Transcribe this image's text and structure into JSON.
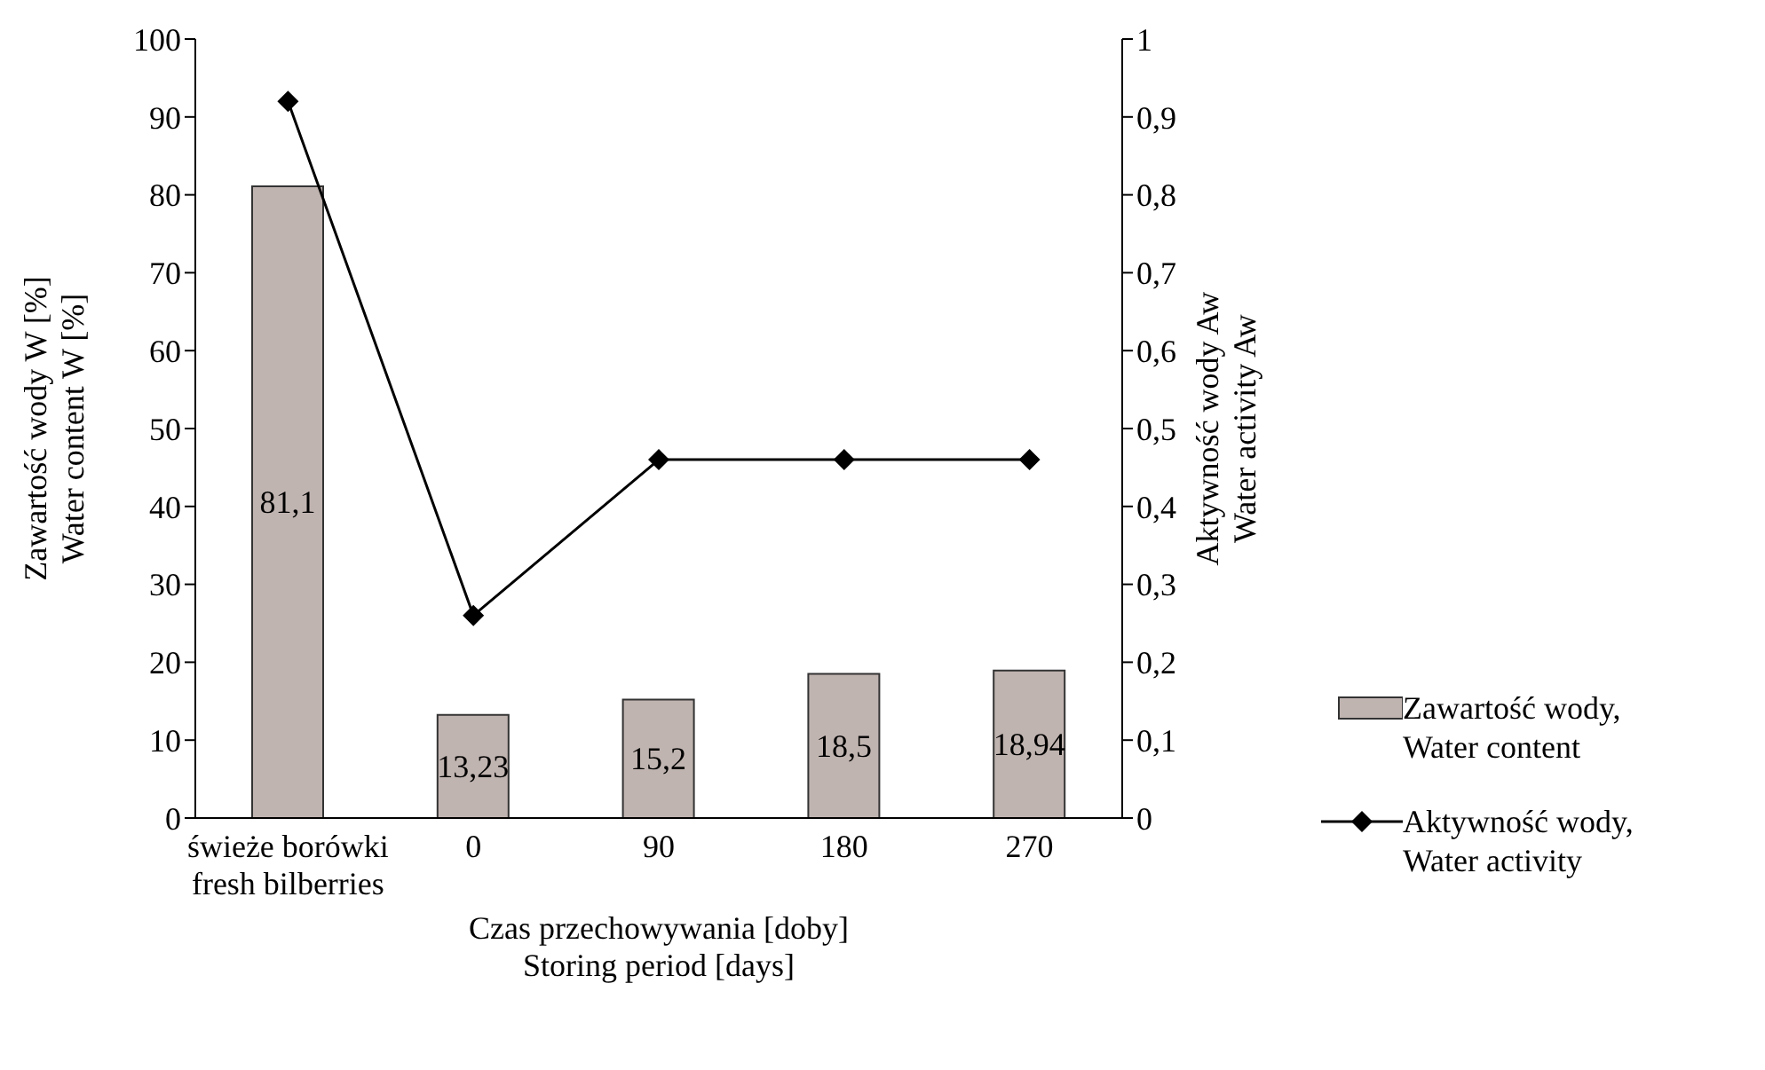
{
  "chart_data": {
    "type": "bar",
    "xlabel": "Czas przechowywania [doby]\nStoring period [days]",
    "ylabel": "Zawartość wody W [%]\nWater content W [%]",
    "y2label": "Aktywność wody Aw\nWater activity Aw",
    "categories": [
      "świeże borówki\nfresh bilberries",
      "0",
      "90",
      "180",
      "270"
    ],
    "series": [
      {
        "name": "Zawartość wody,\nWater content",
        "color": "#c0b4b0",
        "values": [
          81.1,
          13.23,
          15.2,
          18.5,
          18.94
        ],
        "value_labels": [
          "81,1",
          "13,23",
          "15,2",
          "18,5",
          "18,94"
        ]
      },
      {
        "name": "Aktywność wody,\nWater activity",
        "type": "line",
        "axis": "y2",
        "color": "#000000",
        "marker": "diamond",
        "line_style": "solid",
        "values": [
          0.92,
          0.26,
          0.46,
          0.46,
          0.46
        ]
      }
    ],
    "ylim": [
      0,
      100
    ],
    "yticks": [
      0,
      10,
      20,
      30,
      40,
      50,
      60,
      70,
      80,
      90,
      100
    ],
    "y2lim": [
      0,
      1
    ],
    "y2ticks": [
      {
        "value": 0,
        "label": "0"
      },
      {
        "value": 0.1,
        "label": "0,1"
      },
      {
        "value": 0.2,
        "label": "0,2"
      },
      {
        "value": 0.3,
        "label": "0,3"
      },
      {
        "value": 0.4,
        "label": "0,4"
      },
      {
        "value": 0.5,
        "label": "0,5"
      },
      {
        "value": 0.6,
        "label": "0,6"
      },
      {
        "value": 0.7,
        "label": "0,7"
      },
      {
        "value": 0.8,
        "label": "0,8"
      },
      {
        "value": 0.9,
        "label": "0,9"
      },
      {
        "value": 1,
        "label": "1"
      }
    ],
    "grid": false,
    "legend": "right"
  }
}
